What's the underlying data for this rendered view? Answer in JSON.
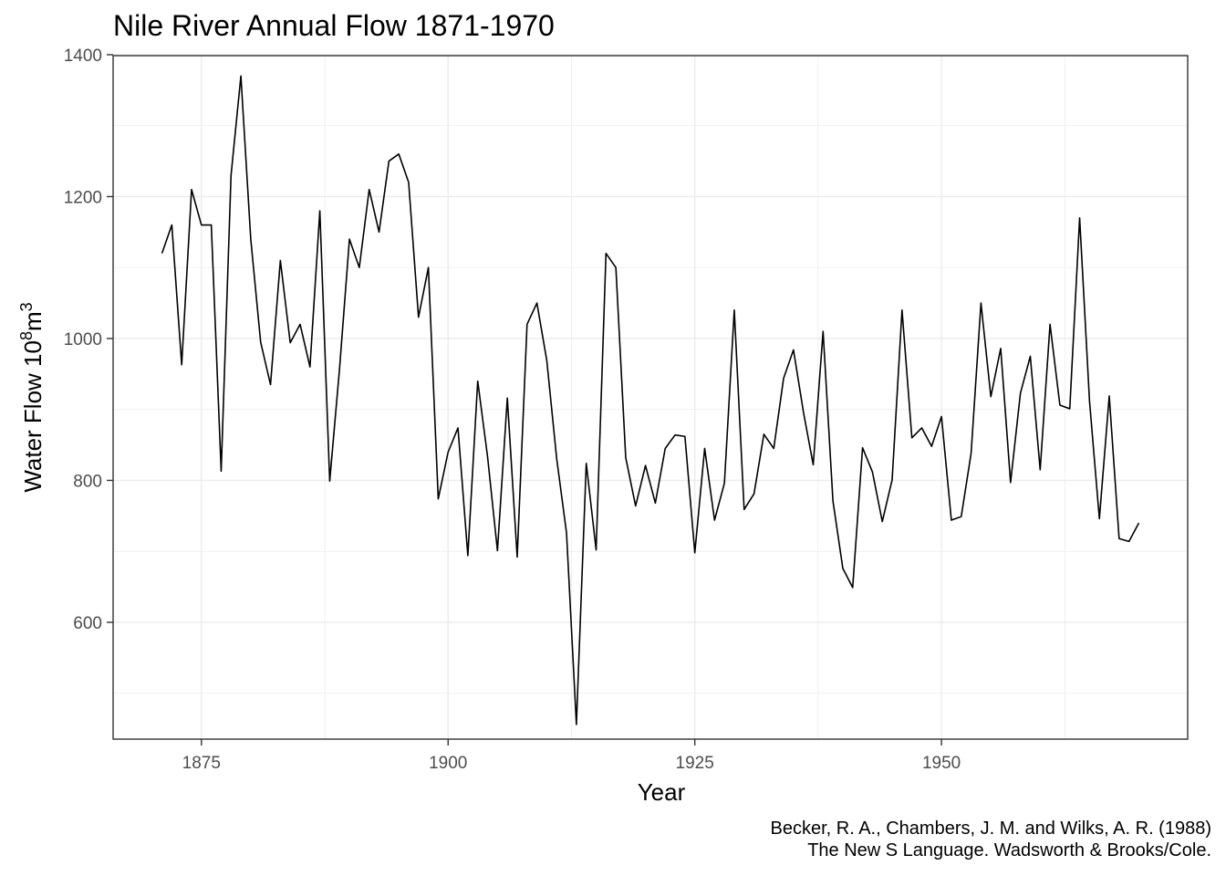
{
  "title": "Nile River Annual Flow 1871-1970",
  "caption": {
    "line1": "Becker, R. A., Chambers, J. M. and Wilks, A. R. (1988)",
    "line2": "The New S Language. Wadsworth & Brooks/Cole."
  },
  "chart_data": {
    "type": "line",
    "title": "Nile River Annual Flow 1871-1970",
    "xlabel": "Year",
    "ylabel": {
      "base": "Water Flow  10",
      "sup1": "8",
      "mid": "m",
      "sup2": "3"
    },
    "xlim": [
      1866.05,
      1974.95
    ],
    "ylim": [
      435.35,
      1398.65
    ],
    "xticks": [
      1875,
      1900,
      1925,
      1950
    ],
    "yticks": [
      600,
      800,
      1000,
      1200,
      1400
    ],
    "grid": true,
    "series": [
      {
        "x": [
          1871,
          1872,
          1873,
          1874,
          1875,
          1876,
          1877,
          1878,
          1879,
          1880,
          1881,
          1882,
          1883,
          1884,
          1885,
          1886,
          1887,
          1888,
          1889,
          1890,
          1891,
          1892,
          1893,
          1894,
          1895,
          1896,
          1897,
          1898,
          1899,
          1900,
          1901,
          1902,
          1903,
          1904,
          1905,
          1906,
          1907,
          1908,
          1909,
          1910,
          1911,
          1912,
          1913,
          1914,
          1915,
          1916,
          1917,
          1918,
          1919,
          1920,
          1921,
          1922,
          1923,
          1924,
          1925,
          1926,
          1927,
          1928,
          1929,
          1930,
          1931,
          1932,
          1933,
          1934,
          1935,
          1936,
          1937,
          1938,
          1939,
          1940,
          1941,
          1942,
          1943,
          1944,
          1945,
          1946,
          1947,
          1948,
          1949,
          1950,
          1951,
          1952,
          1953,
          1954,
          1955,
          1956,
          1957,
          1958,
          1959,
          1960,
          1961,
          1962,
          1963,
          1964,
          1965,
          1966,
          1967,
          1968,
          1969,
          1970
        ],
        "values": [
          1120,
          1160,
          963,
          1210,
          1160,
          1160,
          813,
          1230,
          1370,
          1140,
          995,
          935,
          1110,
          994,
          1020,
          960,
          1180,
          799,
          958,
          1140,
          1100,
          1210,
          1150,
          1250,
          1260,
          1220,
          1030,
          1100,
          774,
          840,
          874,
          694,
          940,
          833,
          701,
          916,
          692,
          1020,
          1050,
          969,
          831,
          726,
          456,
          824,
          702,
          1120,
          1100,
          832,
          764,
          821,
          768,
          845,
          864,
          862,
          698,
          845,
          744,
          796,
          1040,
          759,
          781,
          865,
          845,
          944,
          984,
          897,
          822,
          1010,
          771,
          676,
          649,
          846,
          812,
          742,
          801,
          1040,
          860,
          874,
          848,
          890,
          744,
          749,
          838,
          1050,
          918,
          986,
          797,
          923,
          975,
          815,
          1020,
          906,
          901,
          1170,
          912,
          746,
          919,
          718,
          714,
          740
        ]
      }
    ]
  }
}
